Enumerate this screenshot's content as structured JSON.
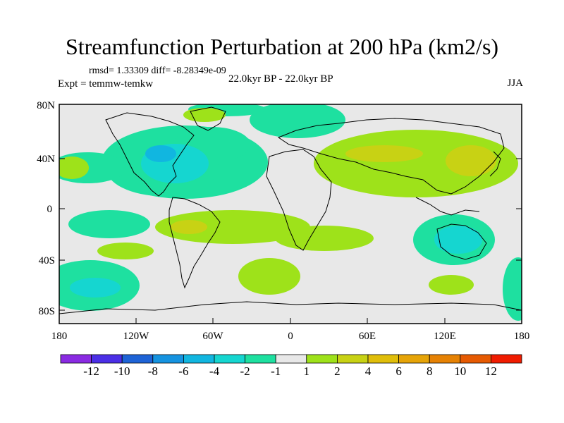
{
  "title": "Streamfunction Perturbation at 200 hPa (km2/s)",
  "stats": "rmsd= 1.33309 diff= -8.28349e-09",
  "left_label": "Expt = temmw-temkw",
  "center_label": "22.0kyr BP - 22.0kyr BP",
  "right_label": "JJA",
  "lat_ticks": [
    "80N",
    "40N",
    "0",
    "40S",
    "80S"
  ],
  "lon_ticks": [
    "180",
    "120W",
    "60W",
    "0",
    "60E",
    "120E",
    "180"
  ],
  "colorbar": {
    "colors": [
      "#8a2be2",
      "#4b2fe6",
      "#1e63d6",
      "#1593e0",
      "#11b6e0",
      "#15d6d0",
      "#1ee0a0",
      "#e8e8e8",
      "#9ee21a",
      "#c8d214",
      "#e0be0a",
      "#e6a408",
      "#e68204",
      "#e65a02",
      "#f01c00"
    ],
    "labels": [
      "-12",
      "-10",
      "-8",
      "-6",
      "-4",
      "-2",
      "-1",
      "1",
      "2",
      "4",
      "6",
      "8",
      "10",
      "12"
    ]
  }
}
